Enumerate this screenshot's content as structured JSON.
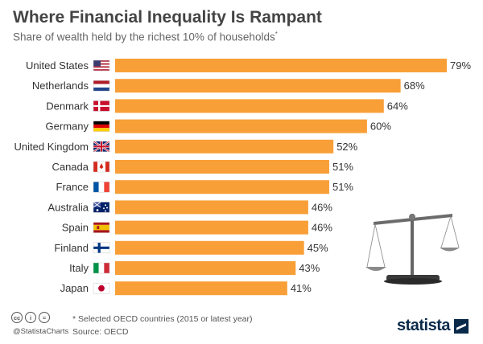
{
  "title": "Where Financial Inequality Is Rampant",
  "subtitle": "Share of wealth held by the richest 10% of households",
  "subtitle_marker": "*",
  "chart_data": {
    "type": "bar",
    "orientation": "horizontal",
    "title": "Where Financial Inequality Is Rampant",
    "subtitle": "Share of wealth held by the richest 10% of households*",
    "categories": [
      "United States",
      "Netherlands",
      "Denmark",
      "Germany",
      "United Kingdom",
      "Canada",
      "France",
      "Australia",
      "Spain",
      "Finland",
      "Italy",
      "Japan"
    ],
    "values": [
      79,
      68,
      64,
      60,
      52,
      51,
      51,
      46,
      46,
      45,
      43,
      41
    ],
    "value_labels": [
      "79%",
      "68%",
      "64%",
      "60%",
      "52%",
      "51%",
      "51%",
      "46%",
      "46%",
      "45%",
      "43%",
      "41%"
    ],
    "flags": [
      "us",
      "nl",
      "dk",
      "de",
      "gb",
      "ca",
      "fr",
      "au",
      "es",
      "fi",
      "it",
      "jp"
    ],
    "xlim": [
      0,
      79
    ],
    "bar_color": "#f89f37",
    "grid": false,
    "legend": "none"
  },
  "footer": {
    "note": "* Selected OECD countries (2015 or latest year)",
    "source": "Source: OECD",
    "credit": "@StatistaCharts",
    "brand": "statista",
    "license_icons": [
      "cc",
      "i",
      "="
    ]
  },
  "illustration": "balance-scale-icon"
}
